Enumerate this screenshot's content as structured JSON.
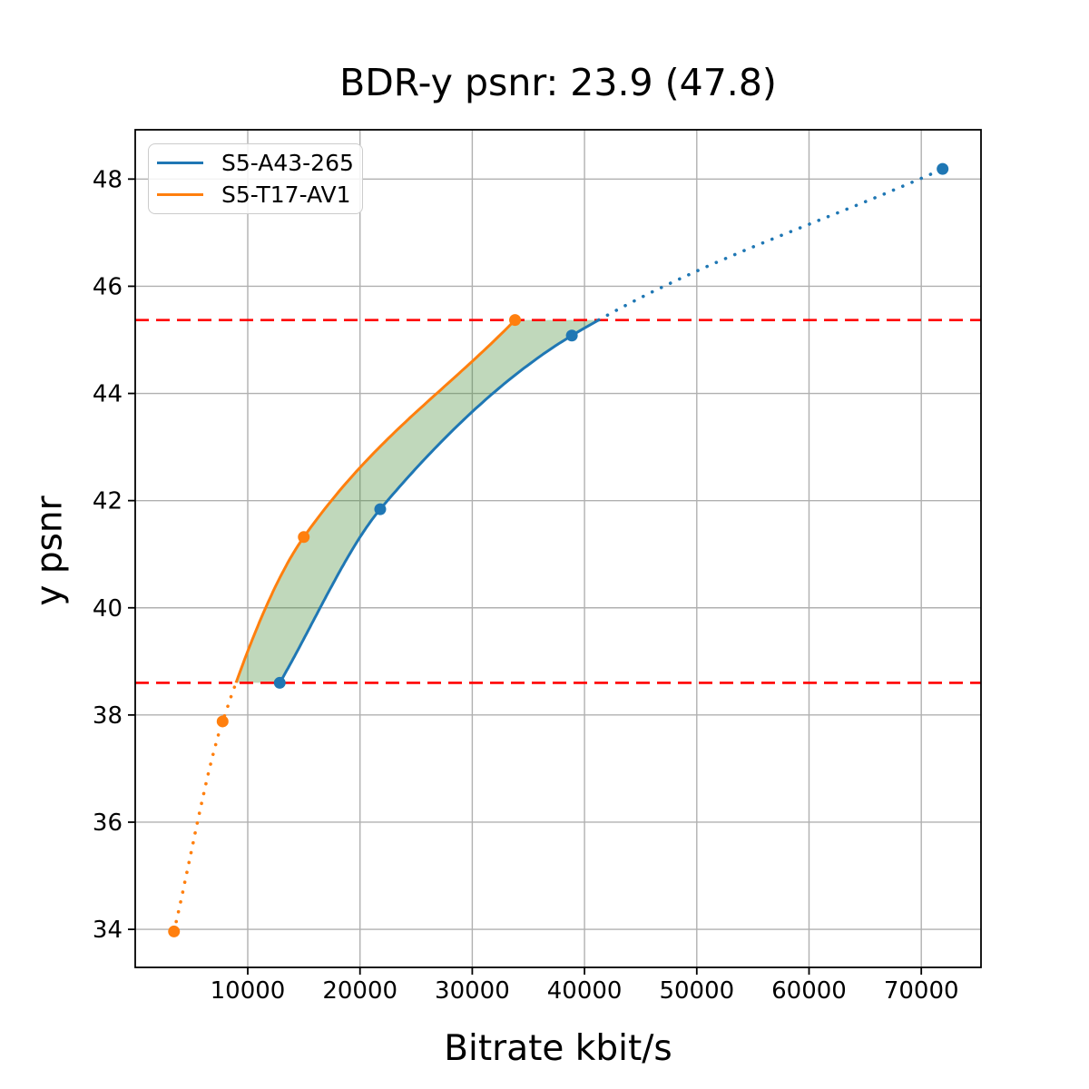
{
  "chart_data": {
    "type": "line",
    "title": "BDR-y psnr: 23.9 (47.8)",
    "xlabel": "Bitrate kbit/s",
    "ylabel": "y psnr",
    "xlim": [
      -25,
      75320
    ],
    "ylim": [
      33.29,
      48.92
    ],
    "xticks": [
      10000,
      20000,
      30000,
      40000,
      50000,
      60000,
      70000
    ],
    "yticks": [
      34,
      36,
      38,
      40,
      42,
      44,
      46,
      48
    ],
    "grid": true,
    "grid_color": "#b0b0b0",
    "axis_color": "#000000",
    "background_color": "#ffffff",
    "series": [
      {
        "name": "S5-A43-265",
        "color": "#1f77b4",
        "x": [
          12850,
          21800,
          38870,
          71900
        ],
        "y": [
          38.6,
          41.84,
          45.08,
          48.19
        ]
      },
      {
        "name": "S5-T17-AV1",
        "color": "#ff7f0e",
        "x": [
          3430,
          7760,
          14990,
          33810
        ],
        "y": [
          33.96,
          37.88,
          41.32,
          45.37
        ]
      }
    ],
    "overlap_psnr_range": [
      38.6,
      45.37
    ],
    "hlines": {
      "values": [
        38.6,
        45.37
      ],
      "color": "#ff0000",
      "style": "dashed"
    },
    "fill_between": {
      "color": "#4a8f3c",
      "opacity": 0.35
    },
    "line_style_note": "curves solid inside overlap psnr range, dotted outside",
    "legend_position": "upper left"
  }
}
